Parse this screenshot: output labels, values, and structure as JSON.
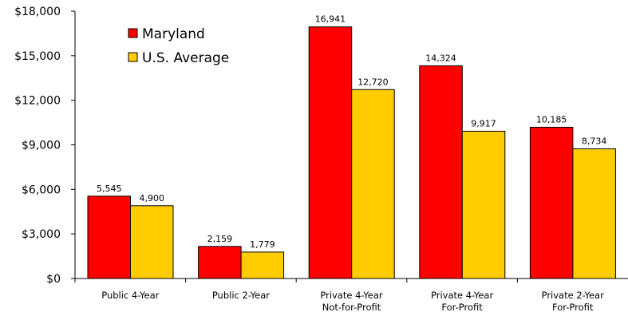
{
  "chart_data": {
    "type": "bar",
    "title": "",
    "xlabel": "",
    "ylabel": "",
    "ylim": [
      0,
      18000
    ],
    "yticks": [
      0,
      3000,
      6000,
      9000,
      12000,
      15000,
      18000
    ],
    "ytick_labels": [
      "$0",
      "$3,000",
      "$6,000",
      "$9,000",
      "$12,000",
      "$15,000",
      "$18,000"
    ],
    "grid": false,
    "legend_position": "top-left",
    "categories": [
      [
        "Public 4-Year"
      ],
      [
        "Public 2-Year"
      ],
      [
        "Private 4-Year",
        "Not-for-Profit"
      ],
      [
        "Private 4-Year",
        "For-Profit"
      ],
      [
        "Private 2-Year",
        "For-Profit"
      ]
    ],
    "series": [
      {
        "name": "Maryland",
        "color": "#ff0000",
        "values": [
          5545,
          2159,
          16941,
          14324,
          10185
        ],
        "labels": [
          "5,545",
          "2,159",
          "16,941",
          "14,324",
          "10,185"
        ]
      },
      {
        "name": "U.S. Average",
        "color": "#ffcc00",
        "values": [
          4900,
          1779,
          12720,
          9917,
          8734
        ],
        "labels": [
          "4,900",
          "1,779",
          "12,720",
          "9,917",
          "8,734"
        ]
      }
    ]
  }
}
